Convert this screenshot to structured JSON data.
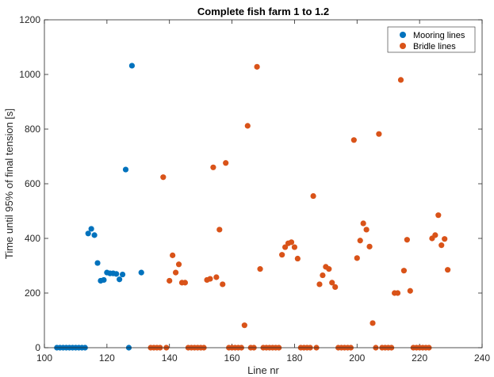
{
  "chart_data": {
    "type": "scatter",
    "title": "Complete fish farm 1 to 1.2",
    "xlabel": "Line nr",
    "ylabel": "Time until 95% of final tension [s]",
    "xlim": [
      100,
      240
    ],
    "ylim": [
      0,
      1200
    ],
    "xticks": [
      100,
      120,
      140,
      160,
      180,
      200,
      220,
      240
    ],
    "yticks": [
      0,
      200,
      400,
      600,
      800,
      1000,
      1200
    ],
    "legend_position": "top-right",
    "series": [
      {
        "name": "Mooring lines",
        "color": "#0072BD",
        "points": [
          [
            104,
            0
          ],
          [
            105,
            0
          ],
          [
            106,
            0
          ],
          [
            107,
            0
          ],
          [
            108,
            0
          ],
          [
            109,
            0
          ],
          [
            110,
            0
          ],
          [
            111,
            0
          ],
          [
            112,
            0
          ],
          [
            113,
            0
          ],
          [
            114,
            418
          ],
          [
            115,
            435
          ],
          [
            116,
            412
          ],
          [
            117,
            310
          ],
          [
            118,
            245
          ],
          [
            119,
            248
          ],
          [
            120,
            275
          ],
          [
            121,
            272
          ],
          [
            122,
            272
          ],
          [
            123,
            270
          ],
          [
            124,
            250
          ],
          [
            125,
            268
          ],
          [
            126,
            652
          ],
          [
            127,
            0
          ],
          [
            128,
            1032
          ],
          [
            131,
            275
          ]
        ]
      },
      {
        "name": "Bridle lines",
        "color": "#D95319",
        "points": [
          [
            134,
            0
          ],
          [
            135,
            0
          ],
          [
            136,
            0
          ],
          [
            137,
            0
          ],
          [
            138,
            624
          ],
          [
            139,
            0
          ],
          [
            140,
            245
          ],
          [
            141,
            338
          ],
          [
            142,
            275
          ],
          [
            143,
            305
          ],
          [
            144,
            238
          ],
          [
            145,
            238
          ],
          [
            146,
            0
          ],
          [
            147,
            0
          ],
          [
            148,
            0
          ],
          [
            149,
            0
          ],
          [
            150,
            0
          ],
          [
            151,
            0
          ],
          [
            152,
            248
          ],
          [
            153,
            252
          ],
          [
            154,
            660
          ],
          [
            155,
            258
          ],
          [
            156,
            432
          ],
          [
            157,
            232
          ],
          [
            158,
            676
          ],
          [
            159,
            0
          ],
          [
            160,
            0
          ],
          [
            161,
            0
          ],
          [
            162,
            0
          ],
          [
            163,
            0
          ],
          [
            164,
            82
          ],
          [
            165,
            812
          ],
          [
            166,
            0
          ],
          [
            167,
            0
          ],
          [
            168,
            1028
          ],
          [
            169,
            288
          ],
          [
            170,
            0
          ],
          [
            171,
            0
          ],
          [
            172,
            0
          ],
          [
            173,
            0
          ],
          [
            174,
            0
          ],
          [
            175,
            0
          ],
          [
            176,
            340
          ],
          [
            177,
            368
          ],
          [
            178,
            382
          ],
          [
            179,
            386
          ],
          [
            180,
            368
          ],
          [
            181,
            326
          ],
          [
            182,
            0
          ],
          [
            183,
            0
          ],
          [
            184,
            0
          ],
          [
            185,
            0
          ],
          [
            186,
            555
          ],
          [
            187,
            0
          ],
          [
            188,
            232
          ],
          [
            189,
            265
          ],
          [
            190,
            296
          ],
          [
            191,
            288
          ],
          [
            192,
            238
          ],
          [
            193,
            222
          ],
          [
            194,
            0
          ],
          [
            195,
            0
          ],
          [
            196,
            0
          ],
          [
            197,
            0
          ],
          [
            198,
            0
          ],
          [
            199,
            760
          ],
          [
            200,
            328
          ],
          [
            201,
            392
          ],
          [
            202,
            455
          ],
          [
            203,
            432
          ],
          [
            204,
            370
          ],
          [
            205,
            90
          ],
          [
            206,
            0
          ],
          [
            207,
            782
          ],
          [
            208,
            0
          ],
          [
            209,
            0
          ],
          [
            210,
            0
          ],
          [
            211,
            0
          ],
          [
            212,
            200
          ],
          [
            213,
            200
          ],
          [
            214,
            980
          ],
          [
            215,
            282
          ],
          [
            216,
            395
          ],
          [
            217,
            208
          ],
          [
            218,
            0
          ],
          [
            219,
            0
          ],
          [
            220,
            0
          ],
          [
            221,
            0
          ],
          [
            222,
            0
          ],
          [
            223,
            0
          ],
          [
            224,
            400
          ],
          [
            225,
            412
          ],
          [
            226,
            485
          ],
          [
            227,
            375
          ],
          [
            228,
            398
          ],
          [
            229,
            285
          ]
        ]
      }
    ]
  }
}
